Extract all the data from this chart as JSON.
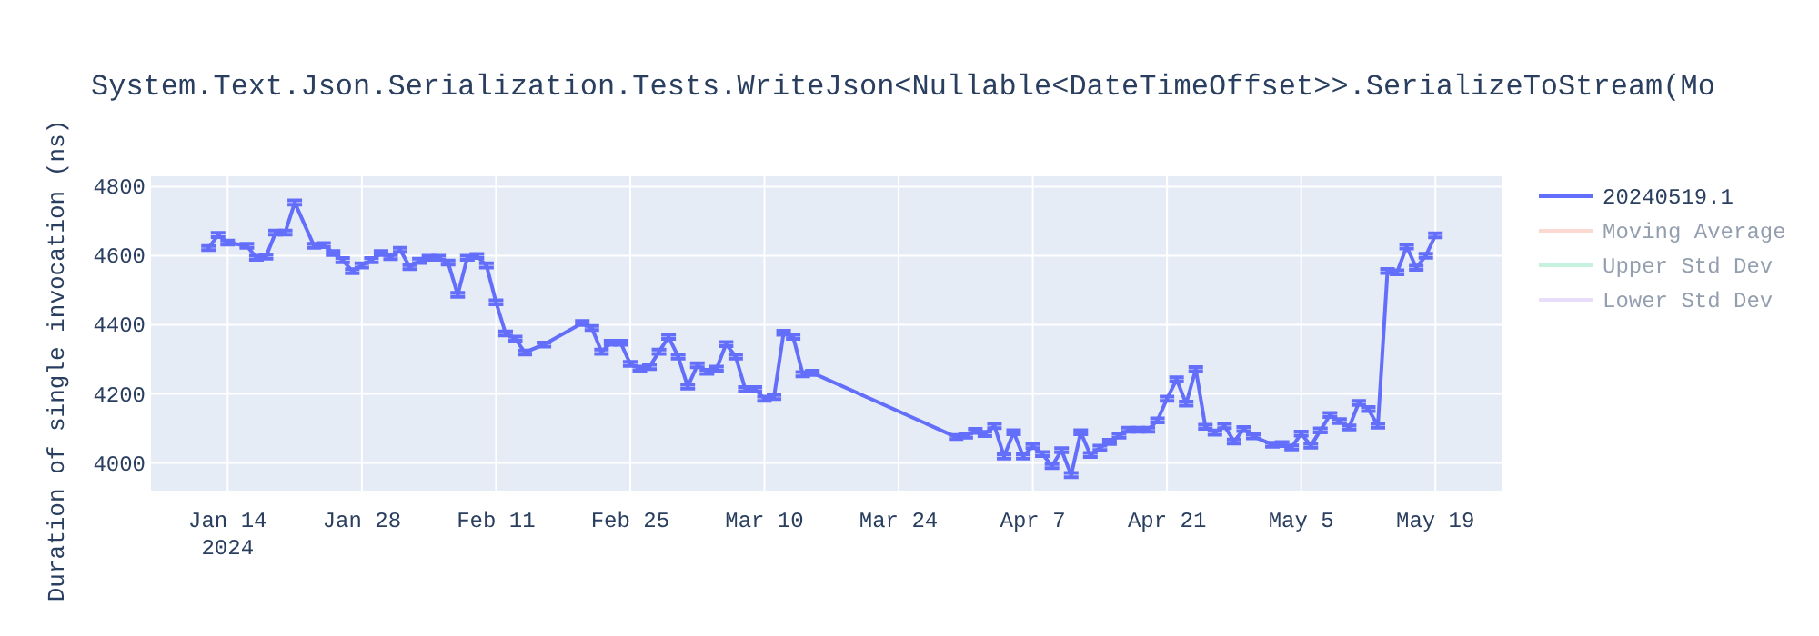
{
  "chart_data": {
    "type": "line",
    "title": "System.Text.Json.Serialization.Tests.WriteJson<Nullable<DateTimeOffset>>.SerializeToStream(Mo",
    "ylabel": "Duration of single invocation (ns)",
    "xlim": [
      "2024-01-06",
      "2024-05-26"
    ],
    "xticks": [
      {
        "value": "2024-01-14",
        "label": "Jan 14\n2024"
      },
      {
        "value": "2024-01-28",
        "label": "Jan 28"
      },
      {
        "value": "2024-02-11",
        "label": "Feb 11"
      },
      {
        "value": "2024-02-25",
        "label": "Feb 25"
      },
      {
        "value": "2024-03-10",
        "label": "Mar 10"
      },
      {
        "value": "2024-03-24",
        "label": "Mar 24"
      },
      {
        "value": "2024-04-07",
        "label": "Apr 7"
      },
      {
        "value": "2024-04-21",
        "label": "Apr 21"
      },
      {
        "value": "2024-05-05",
        "label": "May 5"
      },
      {
        "value": "2024-05-19",
        "label": "May 19"
      }
    ],
    "ylim": [
      3920,
      4830
    ],
    "yticks": [
      4000,
      4200,
      4400,
      4600,
      4800
    ],
    "grid": true,
    "legend": "top right",
    "series": [
      {
        "name": "20240519.1",
        "color": "#636efa",
        "x": [
          "2024-01-12",
          "2024-01-13",
          "2024-01-14",
          "2024-01-16",
          "2024-01-17",
          "2024-01-18",
          "2024-01-19",
          "2024-01-20",
          "2024-01-21",
          "2024-01-23",
          "2024-01-24",
          "2024-01-25",
          "2024-01-26",
          "2024-01-27",
          "2024-01-28",
          "2024-01-29",
          "2024-01-30",
          "2024-01-31",
          "2024-02-01",
          "2024-02-02",
          "2024-02-03",
          "2024-02-04",
          "2024-02-05",
          "2024-02-06",
          "2024-02-07",
          "2024-02-08",
          "2024-02-09",
          "2024-02-10",
          "2024-02-11",
          "2024-02-12",
          "2024-02-13",
          "2024-02-14",
          "2024-02-16",
          "2024-02-20",
          "2024-02-21",
          "2024-02-22",
          "2024-02-23",
          "2024-02-24",
          "2024-02-25",
          "2024-02-26",
          "2024-02-27",
          "2024-02-28",
          "2024-02-29",
          "2024-03-01",
          "2024-03-02",
          "2024-03-03",
          "2024-03-04",
          "2024-03-05",
          "2024-03-06",
          "2024-03-07",
          "2024-03-08",
          "2024-03-09",
          "2024-03-10",
          "2024-03-11",
          "2024-03-12",
          "2024-03-13",
          "2024-03-14",
          "2024-03-15",
          "2024-03-30",
          "2024-03-31",
          "2024-04-01",
          "2024-04-02",
          "2024-04-03",
          "2024-04-04",
          "2024-04-05",
          "2024-04-06",
          "2024-04-07",
          "2024-04-08",
          "2024-04-09",
          "2024-04-10",
          "2024-04-11",
          "2024-04-12",
          "2024-04-13",
          "2024-04-14",
          "2024-04-15",
          "2024-04-16",
          "2024-04-17",
          "2024-04-18",
          "2024-04-19",
          "2024-04-20",
          "2024-04-21",
          "2024-04-22",
          "2024-04-23",
          "2024-04-24",
          "2024-04-25",
          "2024-04-26",
          "2024-04-27",
          "2024-04-28",
          "2024-04-29",
          "2024-04-30",
          "2024-05-02",
          "2024-05-03",
          "2024-05-04",
          "2024-05-05",
          "2024-05-06",
          "2024-05-07",
          "2024-05-08",
          "2024-05-09",
          "2024-05-10",
          "2024-05-11",
          "2024-05-12",
          "2024-05-13",
          "2024-05-14",
          "2024-05-15",
          "2024-05-16",
          "2024-05-17",
          "2024-05-18",
          "2024-05-19"
        ],
        "values": [
          4622,
          4660,
          4638,
          4629,
          4594,
          4597,
          4667,
          4667,
          4754,
          4629,
          4631,
          4608,
          4587,
          4555,
          4572,
          4587,
          4608,
          4596,
          4617,
          4567,
          4585,
          4594,
          4594,
          4580,
          4487,
          4594,
          4599,
          4572,
          4465,
          4375,
          4360,
          4320,
          4343,
          4405,
          4391,
          4322,
          4348,
          4348,
          4287,
          4273,
          4278,
          4322,
          4365,
          4308,
          4221,
          4283,
          4264,
          4273,
          4344,
          4308,
          4214,
          4214,
          4186,
          4191,
          4377,
          4365,
          4257,
          4261,
          4075,
          4079,
          4093,
          4084,
          4107,
          4019,
          4089,
          4019,
          4049,
          4026,
          3991,
          4037,
          3965,
          4089,
          4023,
          4044,
          4061,
          4079,
          4096,
          4096,
          4096,
          4123,
          4186,
          4242,
          4172,
          4272,
          4105,
          4088,
          4107,
          4062,
          4098,
          4077,
          4053,
          4055,
          4045,
          4085,
          4050,
          4094,
          4139,
          4121,
          4103,
          4174,
          4156,
          4108,
          4556,
          4552,
          4627,
          4565,
          4600,
          4659
        ],
        "errors": [
          6,
          6,
          6,
          6,
          6,
          6,
          6,
          6,
          6,
          6,
          6,
          6,
          6,
          6,
          6,
          6,
          6,
          6,
          6,
          6,
          6,
          6,
          6,
          6,
          6,
          6,
          6,
          6,
          6,
          6,
          6,
          6,
          6,
          6,
          6,
          6,
          6,
          6,
          6,
          6,
          6,
          6,
          6,
          6,
          6,
          6,
          6,
          6,
          6,
          6,
          6,
          6,
          6,
          6,
          6,
          6,
          6,
          6,
          6,
          6,
          6,
          6,
          6,
          6,
          6,
          6,
          6,
          6,
          6,
          6,
          6,
          6,
          6,
          6,
          6,
          6,
          6,
          6,
          6,
          6,
          6,
          6,
          6,
          6,
          6,
          6,
          6,
          6,
          6,
          6,
          6,
          6,
          6,
          6,
          6,
          6,
          6,
          6,
          6,
          6,
          6,
          6,
          6,
          6,
          6,
          6,
          6,
          6
        ]
      },
      {
        "name": "Moving Average",
        "color": "#f9b4a4"
      },
      {
        "name": "Upper Std Dev",
        "color": "#8ee5c0"
      },
      {
        "name": "Lower Std Dev",
        "color": "#d3bffb"
      }
    ]
  }
}
